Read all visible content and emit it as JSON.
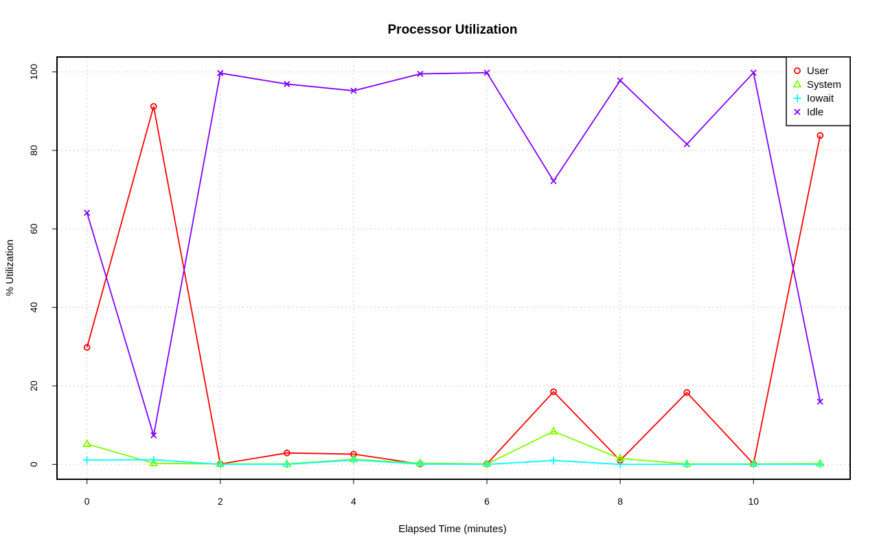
{
  "chart_data": {
    "type": "line",
    "title": "Processor Utilization",
    "xlabel": "Elapsed Time (minutes)",
    "ylabel": "% Utilization",
    "x": [
      0,
      1,
      2,
      3,
      4,
      5,
      6,
      7,
      8,
      9,
      10,
      11
    ],
    "xlim": [
      -0.45,
      11.45
    ],
    "ylim": [
      -3.8,
      103.8
    ],
    "x_ticks": [
      0,
      2,
      4,
      6,
      8,
      10
    ],
    "x_tick_labels": [
      "0",
      "2",
      "4",
      "6",
      "8",
      "10"
    ],
    "y_ticks": [
      0,
      20,
      40,
      60,
      80,
      100
    ],
    "y_tick_labels": [
      "0",
      "20",
      "40",
      "60",
      "80",
      "100"
    ],
    "grid": true,
    "legend_position": "top-right",
    "series": [
      {
        "name": "User",
        "color": "#ff0000",
        "marker": "circle",
        "values": [
          29.8,
          91.2,
          0.1,
          2.9,
          2.6,
          0.1,
          0.1,
          18.5,
          1.0,
          18.3,
          0.1,
          83.8
        ]
      },
      {
        "name": "System",
        "color": "#80ff00",
        "marker": "triangle",
        "values": [
          5.2,
          0.3,
          0.1,
          0.1,
          1.3,
          0.3,
          0.1,
          8.4,
          1.5,
          0.1,
          0.1,
          0.2
        ]
      },
      {
        "name": "Iowait",
        "color": "#00ffff",
        "marker": "plus",
        "values": [
          1.1,
          1.2,
          0.0,
          0.0,
          1.1,
          0.1,
          0.0,
          1.0,
          0.0,
          0.0,
          0.0,
          0.0
        ]
      },
      {
        "name": "Idle",
        "color": "#8000ff",
        "marker": "cross",
        "values": [
          64.1,
          7.4,
          99.7,
          96.9,
          95.2,
          99.5,
          99.8,
          72.2,
          97.8,
          81.6,
          99.8,
          16.0
        ]
      }
    ]
  }
}
